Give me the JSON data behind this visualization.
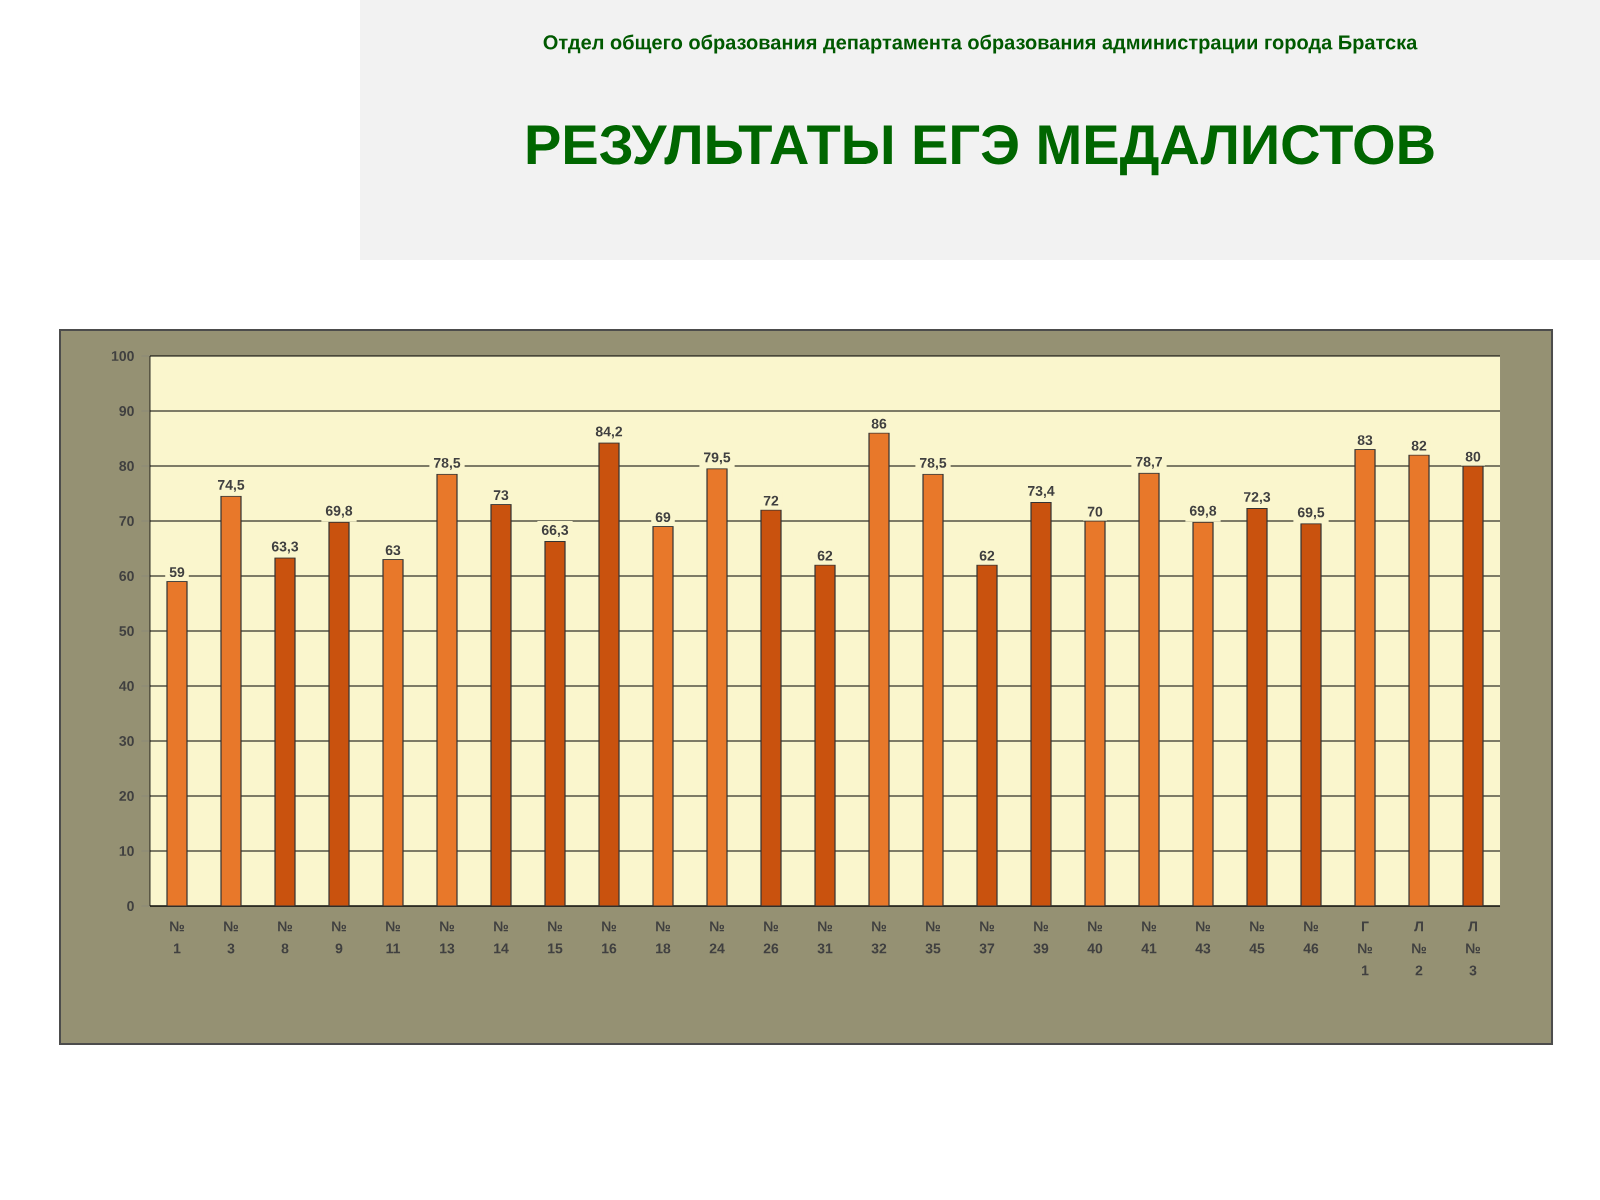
{
  "chart_data": {
    "type": "bar",
    "title": "РЕЗУЛЬТАТЫ ЕГЭ МЕДАЛИСТОВ",
    "subtitle": "Отдел общего образования департамента образования администрации города Братска",
    "categories": [
      "№ 1",
      "№ 3",
      "№ 8",
      "№ 9",
      "№ 11",
      "№ 13",
      "№ 14",
      "№ 15",
      "№ 16",
      "№ 18",
      "№ 24",
      "№ 26",
      "№ 31",
      "№ 32",
      "№ 35",
      "№ 37",
      "№ 39",
      "№ 40",
      "№ 41",
      "№ 43",
      "№ 45",
      "№ 46",
      "Г № 1",
      "Л № 2",
      "Л № 3"
    ],
    "values": [
      59,
      74.5,
      63.3,
      69.8,
      63,
      78.5,
      73,
      66.3,
      84.2,
      69,
      79.5,
      72,
      62,
      86,
      78.5,
      62,
      73.4,
      70,
      78.7,
      69.8,
      72.3,
      69.5,
      83,
      82,
      80
    ],
    "value_labels": [
      "59",
      "74,5",
      "63,3",
      "69,8",
      "63",
      "78,5",
      "73",
      "66,3",
      "84,2",
      "69",
      "79,5",
      "72",
      "62",
      "86",
      "78,5",
      "62",
      "73,4",
      "70",
      "78,7",
      "69,8",
      "72,3",
      "69,5",
      "83",
      "82",
      "80"
    ],
    "colors": [
      "#e8782a",
      "#e8782a",
      "#c9520e",
      "#c9520e",
      "#e8782a",
      "#e8782a",
      "#c9520e",
      "#c9520e",
      "#c9520e",
      "#e8782a",
      "#e8782a",
      "#c9520e",
      "#c9520e",
      "#e8782a",
      "#e8782a",
      "#c9520e",
      "#c9520e",
      "#e8782a",
      "#e8782a",
      "#e8782a",
      "#c9520e",
      "#c9520e",
      "#e8782a",
      "#e8782a",
      "#c9520e"
    ],
    "ylim": [
      0,
      100
    ],
    "yticks": [
      0,
      10,
      20,
      30,
      40,
      50,
      60,
      70,
      80,
      90,
      100
    ],
    "grid": "y"
  }
}
